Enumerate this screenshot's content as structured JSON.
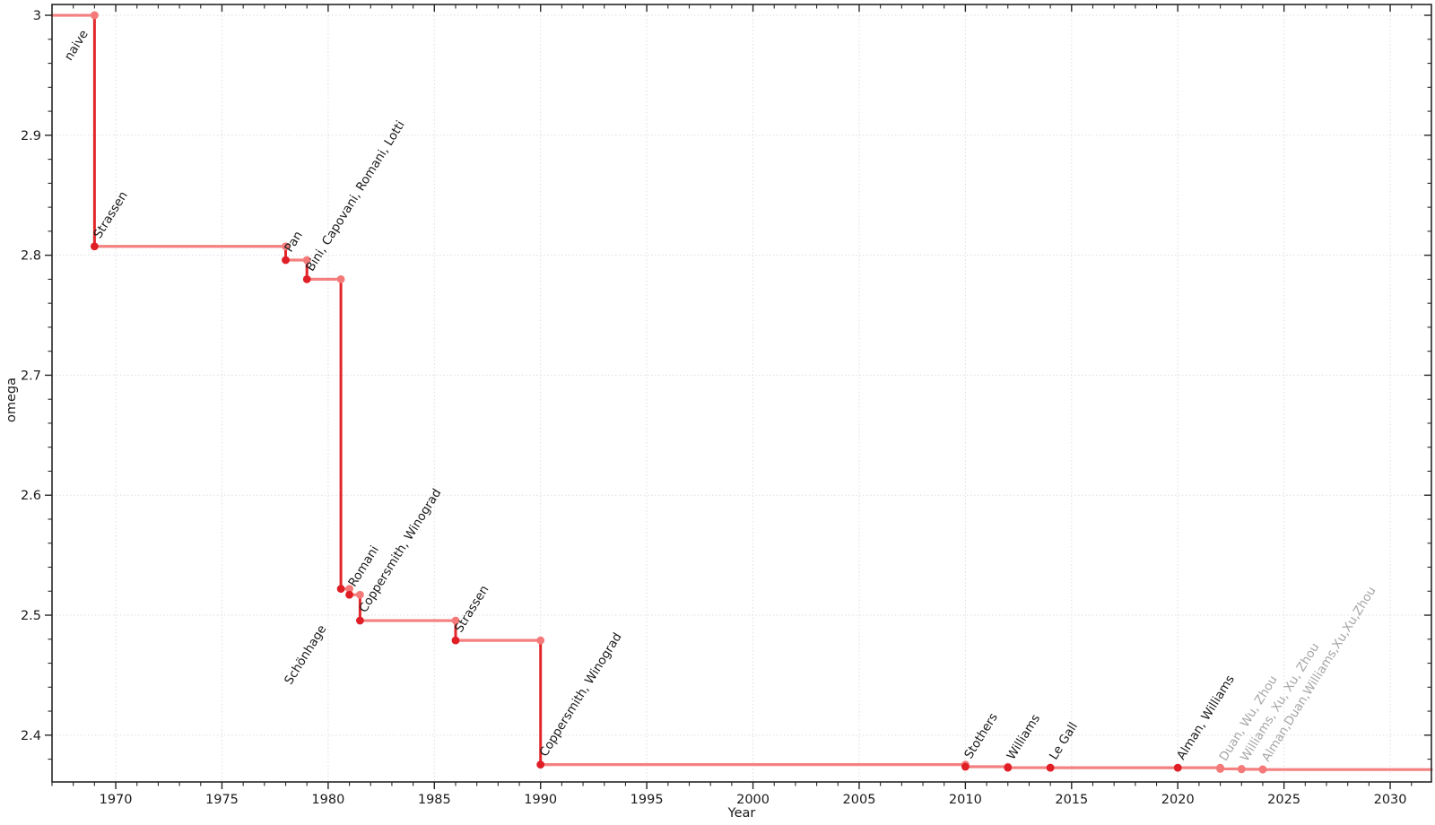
{
  "chart_data": {
    "type": "line",
    "subtype": "step-post",
    "title": "",
    "xlabel": "Year",
    "ylabel": "omega",
    "xlim": [
      1967.0,
      2031.94
    ],
    "ylim": [
      2.361,
      3.009
    ],
    "x_ticks_major": [
      1970,
      1975,
      1980,
      1985,
      1990,
      1995,
      2000,
      2005,
      2010,
      2015,
      2020,
      2025,
      2030
    ],
    "x_minor_step": 1,
    "y_ticks_major": [
      2.4,
      2.5,
      2.6,
      2.7,
      2.8,
      2.9,
      3.0
    ],
    "y_tick_labels": [
      "2.4",
      "2.5",
      "2.6",
      "2.7",
      "2.8",
      "2.9",
      "3"
    ],
    "y_minor_step": 0.02,
    "grid": true,
    "legend": "none",
    "points": [
      {
        "label": "naive",
        "year": 1969,
        "omega": 3.0,
        "dot": "pink",
        "label_color": "black",
        "label_placement": "below",
        "label_offset": [
          -7,
          20
        ]
      },
      {
        "label": "Strassen",
        "year": 1969,
        "omega": 2.8074,
        "dot": "red",
        "label_color": "black",
        "label_placement": "above"
      },
      {
        "label": "Pan",
        "year": 1978,
        "omega": 2.796,
        "dot": "red",
        "label_color": "black",
        "label_placement": "above"
      },
      {
        "label": "Bini, Capovani, Romani, Lotti",
        "year": 1979,
        "omega": 2.78,
        "dot": "red",
        "label_color": "black",
        "label_placement": "above"
      },
      {
        "label": "Schönhage",
        "year": 1980.6,
        "omega": 2.522,
        "dot": "red",
        "label_color": "black",
        "label_placement": "below",
        "label_offset": [
          -16,
          44
        ]
      },
      {
        "label": "Romani",
        "year": 1981,
        "omega": 2.517,
        "dot": "red",
        "label_color": "black",
        "label_placement": "above"
      },
      {
        "label": "Coppersmith, Winograd",
        "year": 1981.5,
        "omega": 2.4955,
        "dot": "red",
        "label_color": "black",
        "label_placement": "above"
      },
      {
        "label": "Strassen",
        "year": 1986,
        "omega": 2.479,
        "dot": "red",
        "label_color": "black",
        "label_placement": "above"
      },
      {
        "label": "Coppersmith, Winograd",
        "year": 1990,
        "omega": 2.3755,
        "dot": "red",
        "label_color": "black",
        "label_placement": "above"
      },
      {
        "label": "Stothers",
        "year": 2010,
        "omega": 2.3737,
        "dot": "red",
        "label_color": "black",
        "label_placement": "above"
      },
      {
        "label": "Williams",
        "year": 2012,
        "omega": 2.3729,
        "dot": "red",
        "label_color": "black",
        "label_placement": "above"
      },
      {
        "label": "Le Gall",
        "year": 2014,
        "omega": 2.3728639,
        "dot": "red",
        "label_color": "black",
        "label_placement": "above"
      },
      {
        "label": "Alman, Williams",
        "year": 2020,
        "omega": 2.3728596,
        "dot": "red",
        "label_color": "black",
        "label_placement": "above"
      },
      {
        "label": "Duan, Wu, Zhou",
        "year": 2022,
        "omega": 2.371866,
        "dot": "pink",
        "label_color": "gray",
        "label_placement": "above"
      },
      {
        "label": "Williams, Xu, Xu, Zhou",
        "year": 2023,
        "omega": 2.371552,
        "dot": "pink",
        "label_color": "gray",
        "label_placement": "above"
      },
      {
        "label": "Alman,Duan,Williams,Xu,Xu,Zhou",
        "year": 2024,
        "omega": 2.371339,
        "dot": "pink",
        "label_color": "gray",
        "label_placement": "above"
      }
    ],
    "colors": {
      "step_horizontal": "#f48080",
      "step_vertical": "#e2262b",
      "dot_red": "#df1e26",
      "dot_pink": "#f47a7a",
      "label_black": "#1a1a1a",
      "label_gray": "#a6a6a6",
      "grid": "#dedede",
      "axis": "#262626",
      "background": "#ffffff"
    }
  }
}
